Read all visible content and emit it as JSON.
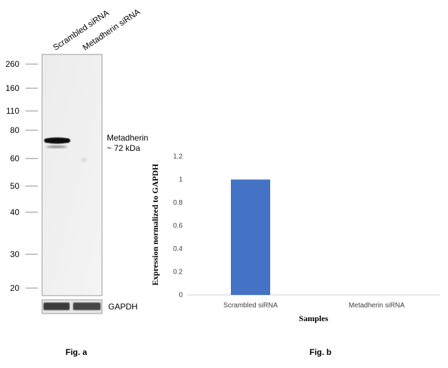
{
  "figure_a": {
    "lane_labels": [
      "Scrambled siRNA",
      "Metadherin siRNA"
    ],
    "mw_markers": [
      "260",
      "160",
      "110",
      "80",
      "60",
      "50",
      "40",
      "30",
      "20"
    ],
    "band_label_line1": "Metadherin",
    "band_label_line2": "~ 72 kDa",
    "loading_control_label": "GAPDH",
    "caption": "Fig. a"
  },
  "figure_b": {
    "caption": "Fig. b"
  },
  "chart_data": {
    "type": "bar",
    "categories": [
      "Scrambled siRNA",
      "Metadherin siRNA"
    ],
    "values": [
      1,
      0
    ],
    "xlabel": "Samples",
    "ylabel": "Expression normalized to GAPDH",
    "ylim": [
      0,
      1.2
    ],
    "yticks": [
      "0",
      "0.2",
      "0.4",
      "0.6",
      "0.8",
      "1",
      "1.2"
    ],
    "bar_color": "#4472C4",
    "grid": false
  }
}
